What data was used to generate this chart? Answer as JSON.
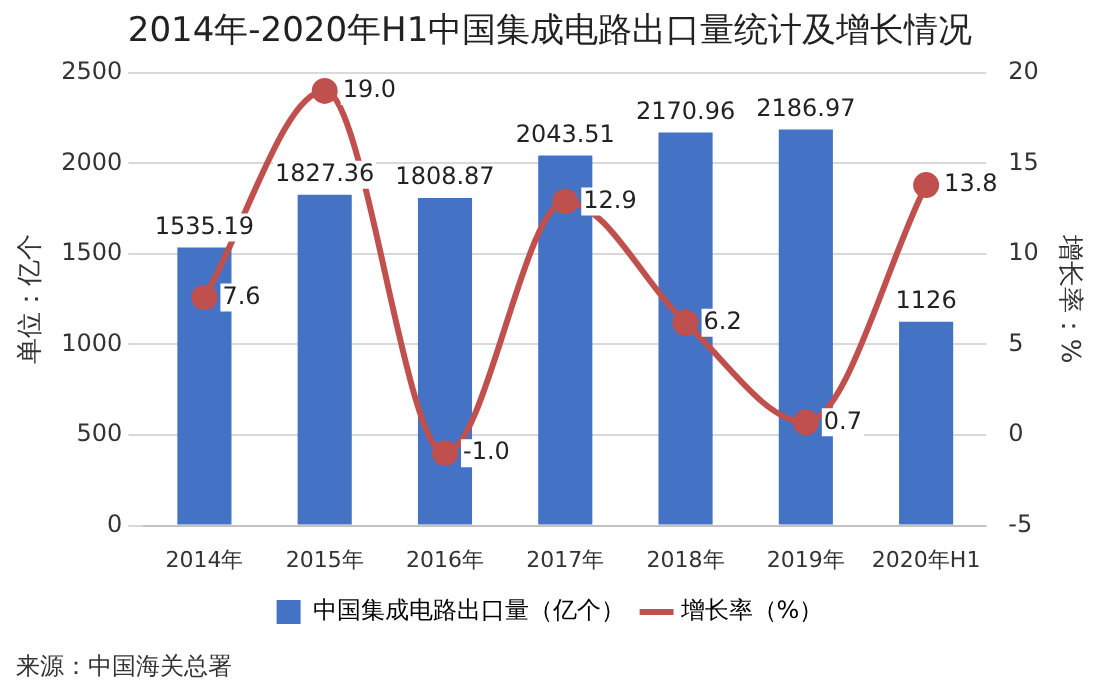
{
  "chart_data": {
    "type": "bar",
    "title": "2014年-2020年H1中国集成电路出口量统计及增长情况",
    "ylabel": "单位：亿个",
    "y2label": "增长率：%",
    "categories": [
      "2014年",
      "2015年",
      "2016年",
      "2017年",
      "2018年",
      "2019年",
      "2020年H1"
    ],
    "series": [
      {
        "name": "中国集成电路出口量（亿个）",
        "color": "#4472c4",
        "values": [
          1535.19,
          1827.36,
          1808.87,
          2043.51,
          2170.96,
          2186.97,
          1126
        ],
        "value_labels": [
          "1535.19",
          "1827.36",
          "1808.87",
          "2043.51",
          "2170.96",
          "2186.97",
          "1126"
        ]
      },
      {
        "name": "增长率（%）",
        "type": "line",
        "axis": "y2",
        "color": "#c0504d",
        "marker": "circle",
        "values": [
          7.6,
          19.0,
          -1.0,
          12.9,
          6.2,
          0.7,
          13.8
        ],
        "value_labels": [
          "7.6",
          "19.0",
          "-1.0",
          "12.9",
          "6.2",
          "0.7",
          "13.8"
        ]
      }
    ],
    "ylim": [
      0,
      2500
    ],
    "yticks": [
      0,
      500,
      1000,
      1500,
      2000,
      2500
    ],
    "y2lim": [
      -5,
      20
    ],
    "y2ticks": [
      -5,
      0,
      5,
      10,
      15,
      20
    ],
    "grid": "y",
    "legend": "bottom",
    "annotations": [
      "来源：中国海关总署"
    ]
  }
}
